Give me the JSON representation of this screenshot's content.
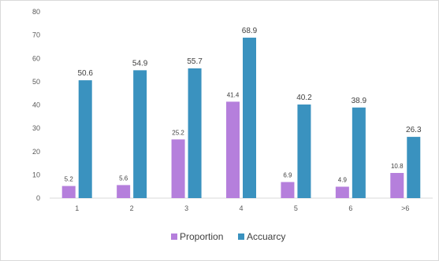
{
  "chart_data": {
    "type": "bar",
    "title": "",
    "xlabel": "",
    "ylabel": "",
    "categories": [
      "1",
      "2",
      "3",
      "4",
      "5",
      "6",
      ">6"
    ],
    "ylim": [
      0,
      80
    ],
    "yticks": [
      0,
      10,
      20,
      30,
      40,
      50,
      60,
      70,
      80
    ],
    "grid": false,
    "legend_position": "bottom",
    "series": [
      {
        "name": "Proportion",
        "color": "#b57fdc",
        "values": [
          5.2,
          5.6,
          25.2,
          41.4,
          6.9,
          4.9,
          10.8
        ]
      },
      {
        "name": "Accuarcy",
        "color": "#3a92bf",
        "values": [
          50.6,
          54.9,
          55.7,
          68.9,
          40.2,
          38.9,
          26.3
        ]
      }
    ]
  }
}
